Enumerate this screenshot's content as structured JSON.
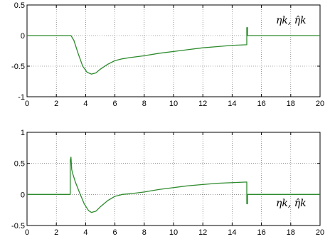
{
  "colors": {
    "line": "#2e8b2e",
    "grid": "#555555",
    "axes": "#000000"
  },
  "chart_data": [
    {
      "type": "line",
      "xlim": [
        0,
        20
      ],
      "ylim": [
        -1,
        0.5
      ],
      "xticks": [
        0,
        2,
        4,
        6,
        8,
        10,
        12,
        14,
        16,
        18,
        20
      ],
      "yticks": [
        -1,
        -0.5,
        0,
        0.5
      ],
      "xtick_labels": [
        "0",
        "2",
        "4",
        "6",
        "8",
        "10",
        "12",
        "14",
        "16",
        "18",
        "20"
      ],
      "ytick_labels": [
        "-1",
        "-0.5",
        "0",
        "0.5"
      ],
      "grid": true,
      "annotation": "ηk, η̂k",
      "series": [
        {
          "color": "#2e8b2e",
          "x": [
            0,
            3.0,
            3.2,
            3.5,
            3.8,
            4.1,
            4.4,
            4.7,
            5.0,
            5.5,
            6.0,
            6.5,
            7.0,
            8.0,
            9.0,
            10.0,
            11.0,
            12.0,
            13.0,
            14.0,
            15.0,
            15.0,
            15.05,
            15.05,
            20
          ],
          "y": [
            0,
            0,
            -0.08,
            -0.3,
            -0.5,
            -0.6,
            -0.63,
            -0.61,
            -0.55,
            -0.47,
            -0.41,
            -0.38,
            -0.36,
            -0.33,
            -0.29,
            -0.26,
            -0.23,
            -0.2,
            -0.18,
            -0.16,
            -0.15,
            0.13,
            0.13,
            0,
            0
          ]
        }
      ]
    },
    {
      "type": "line",
      "xlim": [
        0,
        20
      ],
      "ylim": [
        -0.5,
        1
      ],
      "xticks": [
        0,
        2,
        4,
        6,
        8,
        10,
        12,
        14,
        16,
        18,
        20
      ],
      "yticks": [
        -0.5,
        0,
        0.5,
        1
      ],
      "xtick_labels": [
        "0",
        "2",
        "4",
        "6",
        "8",
        "10",
        "12",
        "14",
        "16",
        "18",
        "20"
      ],
      "ytick_labels": [
        "-0.5",
        "0",
        "0.5",
        "1"
      ],
      "grid": true,
      "annotation": "ηk, η̂k",
      "series": [
        {
          "color": "#2e8b2e",
          "x": [
            0,
            2.95,
            2.95,
            3.0,
            3.05,
            3.1,
            3.3,
            3.6,
            3.9,
            4.2,
            4.4,
            4.7,
            5.0,
            5.5,
            6.0,
            6.5,
            7.0,
            8.0,
            9.0,
            10.0,
            11.0,
            12.0,
            13.0,
            14.0,
            15.0,
            15.0,
            15.05,
            15.05,
            20
          ],
          "y": [
            0,
            0,
            0.55,
            0.6,
            0.4,
            0.35,
            0.2,
            0.02,
            -0.15,
            -0.26,
            -0.29,
            -0.27,
            -0.2,
            -0.1,
            -0.03,
            0,
            0.01,
            0.04,
            0.08,
            0.11,
            0.14,
            0.16,
            0.18,
            0.19,
            0.2,
            -0.15,
            -0.15,
            0,
            0
          ]
        }
      ]
    }
  ]
}
